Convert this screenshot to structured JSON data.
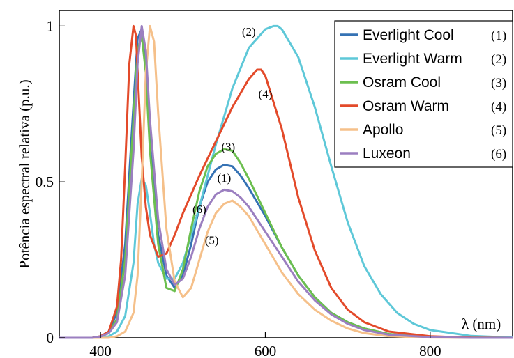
{
  "chart_data": {
    "type": "line",
    "title": "",
    "xlabel": "λ (nm)",
    "ylabel": "Potência espectral relativa (p.u.)",
    "xlim": [
      350,
      900
    ],
    "ylim": [
      0,
      1.05
    ],
    "x_ticks": [
      400,
      600,
      800
    ],
    "x_tick_labels": [
      "400",
      "600",
      "800"
    ],
    "y_ticks": [
      0,
      0.5,
      1
    ],
    "y_tick_labels": [
      "0",
      "0.5",
      "1"
    ],
    "grid": false,
    "legend_position": "top-right",
    "series": [
      {
        "name": "Everlight Cool",
        "number_label": "(1)",
        "color": "#3572b4",
        "x": [
          350,
          390,
          400,
          410,
          420,
          430,
          440,
          445,
          450,
          455,
          460,
          470,
          480,
          490,
          500,
          510,
          520,
          530,
          540,
          550,
          560,
          570,
          580,
          600,
          620,
          640,
          660,
          680,
          700,
          720,
          750,
          800,
          850,
          900
        ],
        "y": [
          0,
          0,
          0.005,
          0.02,
          0.08,
          0.3,
          0.75,
          0.96,
          0.99,
          0.88,
          0.62,
          0.33,
          0.2,
          0.16,
          0.2,
          0.3,
          0.42,
          0.5,
          0.54,
          0.555,
          0.55,
          0.52,
          0.48,
          0.39,
          0.29,
          0.2,
          0.13,
          0.08,
          0.05,
          0.03,
          0.012,
          0.003,
          0.001,
          0
        ]
      },
      {
        "name": "Everlight Warm",
        "number_label": "(2)",
        "color": "#5ec8d8",
        "x": [
          350,
          400,
          410,
          420,
          430,
          440,
          445,
          450,
          455,
          460,
          465,
          470,
          480,
          490,
          500,
          520,
          540,
          560,
          580,
          600,
          610,
          615,
          620,
          640,
          660,
          680,
          700,
          720,
          740,
          760,
          780,
          800,
          850,
          900
        ],
        "y": [
          0,
          0,
          0.005,
          0.02,
          0.07,
          0.24,
          0.43,
          0.51,
          0.49,
          0.4,
          0.3,
          0.24,
          0.19,
          0.19,
          0.24,
          0.42,
          0.62,
          0.8,
          0.93,
          0.99,
          1.0,
          1.0,
          0.99,
          0.9,
          0.74,
          0.55,
          0.37,
          0.23,
          0.14,
          0.08,
          0.045,
          0.025,
          0.006,
          0.001
        ]
      },
      {
        "name": "Osram Cool",
        "number_label": "(3)",
        "color": "#6cbf4f",
        "x": [
          350,
          390,
          400,
          410,
          420,
          430,
          440,
          445,
          450,
          455,
          460,
          470,
          480,
          490,
          500,
          510,
          520,
          530,
          540,
          550,
          560,
          570,
          580,
          600,
          620,
          640,
          660,
          680,
          700,
          720,
          750,
          800,
          850,
          900
        ],
        "y": [
          0,
          0,
          0.004,
          0.015,
          0.06,
          0.25,
          0.7,
          0.92,
          0.97,
          0.85,
          0.6,
          0.3,
          0.16,
          0.15,
          0.22,
          0.35,
          0.47,
          0.55,
          0.59,
          0.605,
          0.6,
          0.56,
          0.51,
          0.4,
          0.29,
          0.2,
          0.13,
          0.08,
          0.05,
          0.03,
          0.012,
          0.003,
          0.001,
          0
        ]
      },
      {
        "name": "Osram Warm",
        "number_label": "(4)",
        "color": "#e34a2a",
        "x": [
          350,
          390,
          400,
          410,
          420,
          425,
          430,
          435,
          440,
          443,
          446,
          450,
          455,
          460,
          470,
          480,
          490,
          500,
          520,
          540,
          560,
          580,
          590,
          595,
          600,
          620,
          640,
          660,
          680,
          700,
          720,
          750,
          800,
          850,
          900
        ],
        "y": [
          0,
          0,
          0.005,
          0.02,
          0.1,
          0.25,
          0.55,
          0.88,
          1.0,
          0.97,
          0.8,
          0.58,
          0.42,
          0.33,
          0.26,
          0.27,
          0.33,
          0.4,
          0.52,
          0.63,
          0.74,
          0.83,
          0.86,
          0.86,
          0.84,
          0.67,
          0.45,
          0.28,
          0.16,
          0.09,
          0.05,
          0.02,
          0.005,
          0.001,
          0
        ]
      },
      {
        "name": "Apollo",
        "number_label": "(5)",
        "color": "#f5c08a",
        "x": [
          350,
          410,
          420,
          430,
          440,
          445,
          450,
          455,
          460,
          465,
          470,
          480,
          490,
          500,
          510,
          520,
          530,
          540,
          550,
          560,
          570,
          580,
          600,
          620,
          640,
          660,
          680,
          700,
          720,
          750,
          800,
          850,
          900
        ],
        "y": [
          0,
          0,
          0.005,
          0.02,
          0.08,
          0.2,
          0.5,
          0.85,
          1.0,
          0.95,
          0.72,
          0.35,
          0.18,
          0.13,
          0.16,
          0.25,
          0.34,
          0.4,
          0.43,
          0.44,
          0.42,
          0.39,
          0.3,
          0.21,
          0.14,
          0.09,
          0.055,
          0.03,
          0.015,
          0.005,
          0.001,
          0,
          0
        ]
      },
      {
        "name": "Luxeon",
        "number_label": "(6)",
        "color": "#9b7fc0",
        "x": [
          350,
          390,
          400,
          410,
          420,
          430,
          440,
          445,
          450,
          455,
          460,
          470,
          480,
          490,
          500,
          510,
          520,
          530,
          540,
          550,
          560,
          570,
          580,
          600,
          620,
          640,
          660,
          680,
          700,
          720,
          750,
          800,
          850,
          900
        ],
        "y": [
          0,
          0,
          0.004,
          0.015,
          0.05,
          0.2,
          0.6,
          0.88,
          1.0,
          0.92,
          0.7,
          0.38,
          0.22,
          0.17,
          0.19,
          0.26,
          0.35,
          0.42,
          0.46,
          0.475,
          0.47,
          0.45,
          0.42,
          0.34,
          0.26,
          0.18,
          0.12,
          0.075,
          0.045,
          0.025,
          0.01,
          0.002,
          0,
          0
        ]
      }
    ],
    "curve_labels": [
      {
        "text": "(2)",
        "x": 580,
        "y": 0.97
      },
      {
        "text": "(4)",
        "x": 600,
        "y": 0.77
      },
      {
        "text": "(3)",
        "x": 555,
        "y": 0.6
      },
      {
        "text": "(1)",
        "x": 550,
        "y": 0.5
      },
      {
        "text": "(6)",
        "x": 520,
        "y": 0.4
      },
      {
        "text": "(5)",
        "x": 535,
        "y": 0.3
      }
    ]
  }
}
